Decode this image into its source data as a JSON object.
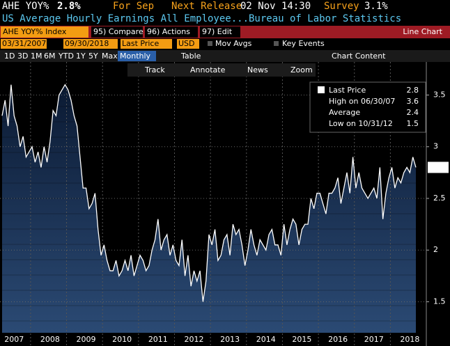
{
  "header": {
    "ticker": "AHE YOY%",
    "value": "2.8%",
    "for": "For Sep",
    "next_release_label": "Next Release",
    "next_release": "02 Nov 14:30",
    "survey_label": "Survey",
    "survey": "3.1%",
    "subtitle": "US Average Hourly Earnings All Employee...Bureau of Labor Statistics"
  },
  "menu": {
    "security": "AHE YOY% Index",
    "buttons": [
      "95) Compare",
      "96) Actions",
      "97) Edit"
    ],
    "view": "Line Chart"
  },
  "controls": {
    "start": "03/31/2007",
    "end": "09/30/2018",
    "field": "Last Price",
    "currency": "USD",
    "mov_avgs": "Mov Avgs",
    "key_events": "Key Events"
  },
  "periods": {
    "items": [
      "1D",
      "3D",
      "1M",
      "6M",
      "YTD",
      "1Y",
      "5Y",
      "Max"
    ],
    "frequency": "Monthly",
    "table": "Table",
    "chart_content": "Chart Content"
  },
  "toolbar": [
    "Track",
    "Annotate",
    "News",
    "Zoom"
  ],
  "legend": [
    {
      "label": "Last Price",
      "value": "2.8"
    },
    {
      "label": "High on 06/30/07",
      "value": "3.6"
    },
    {
      "label": "Average",
      "value": "2.4"
    },
    {
      "label": "Low on 10/31/12",
      "value": "1.5"
    }
  ],
  "chart_data": {
    "type": "line",
    "categories": [
      null,
      null,
      null,
      null,
      "2007",
      null,
      null,
      null,
      null,
      null,
      null,
      null,
      null,
      null,
      null,
      null,
      "2008",
      null,
      null,
      null,
      null,
      null,
      null,
      null,
      null,
      null,
      null,
      null,
      "2009",
      null,
      null,
      null,
      null,
      null,
      null,
      null,
      null,
      null,
      null,
      null,
      "2010",
      null,
      null,
      null,
      null,
      null,
      null,
      null,
      null,
      null,
      null,
      null,
      "2011",
      null,
      null,
      null,
      null,
      null,
      null,
      null,
      null,
      null,
      null,
      null,
      "2012",
      null,
      null,
      null,
      null,
      null,
      null,
      null,
      null,
      null,
      null,
      null,
      "2013",
      null,
      null,
      null,
      null,
      null,
      null,
      null,
      null,
      null,
      null,
      null,
      "2014",
      null,
      null,
      null,
      null,
      null,
      null,
      null,
      null,
      null,
      null,
      null,
      "2015",
      null,
      null,
      null,
      null,
      null,
      null,
      null,
      null,
      null,
      null,
      null,
      "2016",
      null,
      null,
      null,
      null,
      null,
      null,
      null,
      null,
      null,
      null,
      null,
      "2017",
      null,
      null,
      null,
      null,
      null,
      null,
      null,
      null,
      null,
      null,
      null,
      "2018",
      null,
      null
    ],
    "series": [
      {
        "name": "Last Price",
        "color": "#ffffff",
        "values": [
          3.3,
          3.45,
          3.2,
          3.6,
          3.3,
          3.2,
          3.0,
          3.1,
          2.9,
          2.95,
          3.0,
          2.85,
          2.95,
          2.8,
          3.0,
          2.85,
          3.05,
          3.35,
          3.3,
          3.5,
          3.55,
          3.6,
          3.55,
          3.45,
          3.3,
          3.2,
          2.9,
          2.6,
          2.6,
          2.4,
          2.45,
          2.55,
          2.2,
          1.95,
          2.05,
          1.9,
          1.8,
          1.8,
          1.9,
          1.75,
          1.8,
          1.9,
          1.8,
          1.95,
          1.75,
          1.85,
          1.95,
          1.9,
          1.8,
          1.85,
          2.0,
          2.1,
          2.3,
          2.0,
          2.1,
          2.15,
          1.95,
          2.05,
          1.9,
          1.85,
          2.1,
          1.75,
          1.95,
          1.65,
          1.8,
          1.7,
          1.8,
          1.5,
          1.7,
          2.15,
          2.05,
          2.2,
          1.9,
          1.95,
          2.1,
          2.15,
          1.95,
          2.25,
          2.15,
          2.2,
          2.05,
          1.85,
          2.0,
          2.2,
          2.05,
          1.95,
          2.1,
          2.05,
          2.0,
          2.15,
          2.2,
          2.05,
          2.05,
          1.95,
          2.25,
          2.05,
          2.2,
          2.3,
          2.25,
          2.05,
          2.2,
          2.25,
          2.25,
          2.5,
          2.4,
          2.55,
          2.55,
          2.45,
          2.35,
          2.55,
          2.55,
          2.6,
          2.7,
          2.45,
          2.6,
          2.75,
          2.55,
          2.9,
          2.6,
          2.75,
          2.6,
          2.55,
          2.5,
          2.55,
          2.6,
          2.5,
          2.8,
          2.3,
          2.55,
          2.7,
          2.8,
          2.6,
          2.7,
          2.65,
          2.75,
          2.8,
          2.75,
          2.9,
          2.8
        ]
      }
    ],
    "ylim": [
      1.2,
      3.82
    ],
    "yticks": [
      1.5,
      2.0,
      2.5,
      3.0,
      3.5
    ],
    "grid": true
  }
}
